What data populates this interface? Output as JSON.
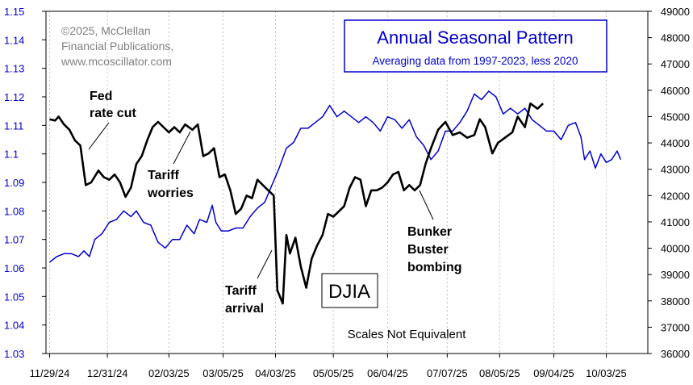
{
  "chart_data": {
    "type": "line",
    "title": "Annual Seasonal Pattern",
    "subtitle": "Averaging data from 1997-2023, less 2020",
    "copyright_lines": [
      "©2025, McClellan",
      "Financial Publications,",
      "www.mcoscillator.com"
    ],
    "series_label": "DJIA",
    "scale_note": "Scales Not Equivalent",
    "left_axis": {
      "ylim": [
        1.03,
        1.15
      ],
      "ticks": [
        "1.03",
        "1.04",
        "1.05",
        "1.06",
        "1.07",
        "1.08",
        "1.09",
        "1.1",
        "1.11",
        "1.12",
        "1.13",
        "1.14",
        "1.15"
      ]
    },
    "right_axis": {
      "ylim": [
        36000,
        49000
      ],
      "ticks": [
        "36000",
        "37000",
        "38000",
        "39000",
        "40000",
        "41000",
        "42000",
        "43000",
        "44000",
        "45000",
        "46000",
        "47000",
        "48000",
        "49000"
      ]
    },
    "x_tick_labels": [
      "11/29/24",
      "12/31/24",
      "02/03/25",
      "03/05/25",
      "04/03/25",
      "05/05/25",
      "06/04/25",
      "07/07/25",
      "08/05/25",
      "09/04/25",
      "10/03/25"
    ],
    "x_tick_dates": [
      "2024-11-29",
      "2024-12-31",
      "2025-02-03",
      "2025-03-05",
      "2025-04-03",
      "2025-05-05",
      "2025-06-04",
      "2025-07-07",
      "2025-08-05",
      "2025-09-04",
      "2025-10-03"
    ],
    "xlim": [
      "2024-11-27",
      "2025-10-26"
    ],
    "colors": {
      "seasonal": "#0000cc",
      "djia": "#000000",
      "axis_text": "#0000cc",
      "frame": "#000000"
    },
    "series": [
      {
        "name": "Annual Seasonal Pattern",
        "axis": "left",
        "points": [
          [
            "2024-11-29",
            1.062
          ],
          [
            "2024-12-03",
            1.064
          ],
          [
            "2024-12-07",
            1.065
          ],
          [
            "2024-12-11",
            1.065
          ],
          [
            "2024-12-15",
            1.064
          ],
          [
            "2024-12-18",
            1.066
          ],
          [
            "2024-12-21",
            1.064
          ],
          [
            "2024-12-24",
            1.07
          ],
          [
            "2024-12-28",
            1.072
          ],
          [
            "2025-01-01",
            1.076
          ],
          [
            "2025-01-05",
            1.077
          ],
          [
            "2025-01-09",
            1.08
          ],
          [
            "2025-01-13",
            1.078
          ],
          [
            "2025-01-16",
            1.08
          ],
          [
            "2025-01-20",
            1.076
          ],
          [
            "2025-01-24",
            1.075
          ],
          [
            "2025-01-28",
            1.069
          ],
          [
            "2025-02-01",
            1.067
          ],
          [
            "2025-02-05",
            1.07
          ],
          [
            "2025-02-09",
            1.07
          ],
          [
            "2025-02-13",
            1.075
          ],
          [
            "2025-02-17",
            1.072
          ],
          [
            "2025-02-20",
            1.077
          ],
          [
            "2025-02-24",
            1.076
          ],
          [
            "2025-02-27",
            1.082
          ],
          [
            "2025-03-01",
            1.076
          ],
          [
            "2025-03-04",
            1.073
          ],
          [
            "2025-03-08",
            1.073
          ],
          [
            "2025-03-12",
            1.074
          ],
          [
            "2025-03-16",
            1.074
          ],
          [
            "2025-03-20",
            1.078
          ],
          [
            "2025-03-24",
            1.081
          ],
          [
            "2025-03-28",
            1.083
          ],
          [
            "2025-04-01",
            1.089
          ],
          [
            "2025-04-05",
            1.095
          ],
          [
            "2025-04-09",
            1.102
          ],
          [
            "2025-04-13",
            1.104
          ],
          [
            "2025-04-17",
            1.109
          ],
          [
            "2025-04-21",
            1.109
          ],
          [
            "2025-04-25",
            1.111
          ],
          [
            "2025-04-29",
            1.113
          ],
          [
            "2025-05-03",
            1.117
          ],
          [
            "2025-05-07",
            1.113
          ],
          [
            "2025-05-11",
            1.115
          ],
          [
            "2025-05-15",
            1.113
          ],
          [
            "2025-05-19",
            1.111
          ],
          [
            "2025-05-23",
            1.113
          ],
          [
            "2025-05-27",
            1.111
          ],
          [
            "2025-05-31",
            1.108
          ],
          [
            "2025-06-04",
            1.113
          ],
          [
            "2025-06-08",
            1.112
          ],
          [
            "2025-06-12",
            1.109
          ],
          [
            "2025-06-16",
            1.112
          ],
          [
            "2025-06-20",
            1.106
          ],
          [
            "2025-06-24",
            1.103
          ],
          [
            "2025-06-28",
            1.098
          ],
          [
            "2025-07-02",
            1.101
          ],
          [
            "2025-07-06",
            1.108
          ],
          [
            "2025-07-10",
            1.108
          ],
          [
            "2025-07-14",
            1.111
          ],
          [
            "2025-07-18",
            1.115
          ],
          [
            "2025-07-22",
            1.121
          ],
          [
            "2025-07-26",
            1.119
          ],
          [
            "2025-07-30",
            1.122
          ],
          [
            "2025-08-03",
            1.12
          ],
          [
            "2025-08-07",
            1.114
          ],
          [
            "2025-08-11",
            1.116
          ],
          [
            "2025-08-15",
            1.114
          ],
          [
            "2025-08-19",
            1.116
          ],
          [
            "2025-08-23",
            1.112
          ],
          [
            "2025-08-27",
            1.11
          ],
          [
            "2025-08-31",
            1.108
          ],
          [
            "2025-09-04",
            1.108
          ],
          [
            "2025-09-08",
            1.105
          ],
          [
            "2025-09-12",
            1.11
          ],
          [
            "2025-09-16",
            1.111
          ],
          [
            "2025-09-19",
            1.106
          ],
          [
            "2025-09-21",
            1.098
          ],
          [
            "2025-09-24",
            1.101
          ],
          [
            "2025-09-27",
            1.095
          ],
          [
            "2025-09-30",
            1.1
          ],
          [
            "2025-10-03",
            1.097
          ],
          [
            "2025-10-06",
            1.098
          ],
          [
            "2025-10-09",
            1.101
          ],
          [
            "2025-10-11",
            1.098
          ]
        ]
      },
      {
        "name": "DJIA",
        "axis": "right",
        "points": [
          [
            "2024-11-29",
            44900
          ],
          [
            "2024-12-02",
            44850
          ],
          [
            "2024-12-04",
            45000
          ],
          [
            "2024-12-07",
            44700
          ],
          [
            "2024-12-10",
            44500
          ],
          [
            "2024-12-13",
            44100
          ],
          [
            "2024-12-16",
            43900
          ],
          [
            "2024-12-19",
            42400
          ],
          [
            "2024-12-22",
            42500
          ],
          [
            "2024-12-26",
            42950
          ],
          [
            "2024-12-29",
            42700
          ],
          [
            "2025-01-01",
            42600
          ],
          [
            "2025-01-04",
            42800
          ],
          [
            "2025-01-07",
            42500
          ],
          [
            "2025-01-10",
            41950
          ],
          [
            "2025-01-13",
            42300
          ],
          [
            "2025-01-16",
            43200
          ],
          [
            "2025-01-19",
            43500
          ],
          [
            "2025-01-22",
            44100
          ],
          [
            "2025-01-25",
            44600
          ],
          [
            "2025-01-28",
            44800
          ],
          [
            "2025-01-31",
            44600
          ],
          [
            "2025-02-03",
            44400
          ],
          [
            "2025-02-06",
            44600
          ],
          [
            "2025-02-09",
            44400
          ],
          [
            "2025-02-12",
            44700
          ],
          [
            "2025-02-16",
            44500
          ],
          [
            "2025-02-19",
            44700
          ],
          [
            "2025-02-22",
            43500
          ],
          [
            "2025-02-25",
            43600
          ],
          [
            "2025-02-28",
            43800
          ],
          [
            "2025-03-03",
            42700
          ],
          [
            "2025-03-06",
            42800
          ],
          [
            "2025-03-09",
            42200
          ],
          [
            "2025-03-12",
            41300
          ],
          [
            "2025-03-15",
            41500
          ],
          [
            "2025-03-18",
            42000
          ],
          [
            "2025-03-21",
            41900
          ],
          [
            "2025-03-24",
            42600
          ],
          [
            "2025-03-27",
            42400
          ],
          [
            "2025-03-30",
            42200
          ],
          [
            "2025-04-02",
            42000
          ],
          [
            "2025-04-04",
            38400
          ],
          [
            "2025-04-07",
            37900
          ],
          [
            "2025-04-09",
            40500
          ],
          [
            "2025-04-11",
            39800
          ],
          [
            "2025-04-14",
            40400
          ],
          [
            "2025-04-17",
            39300
          ],
          [
            "2025-04-20",
            38500
          ],
          [
            "2025-04-23",
            39600
          ],
          [
            "2025-04-26",
            40100
          ],
          [
            "2025-04-29",
            40500
          ],
          [
            "2025-05-02",
            41300
          ],
          [
            "2025-05-05",
            41200
          ],
          [
            "2025-05-08",
            41400
          ],
          [
            "2025-05-11",
            41600
          ],
          [
            "2025-05-14",
            42300
          ],
          [
            "2025-05-17",
            42700
          ],
          [
            "2025-05-20",
            42600
          ],
          [
            "2025-05-23",
            41600
          ],
          [
            "2025-05-26",
            42200
          ],
          [
            "2025-05-29",
            42200
          ],
          [
            "2025-06-01",
            42300
          ],
          [
            "2025-06-04",
            42500
          ],
          [
            "2025-06-07",
            42800
          ],
          [
            "2025-06-10",
            42900
          ],
          [
            "2025-06-13",
            42200
          ],
          [
            "2025-06-16",
            42400
          ],
          [
            "2025-06-19",
            42200
          ],
          [
            "2025-06-22",
            42400
          ],
          [
            "2025-06-25",
            43200
          ],
          [
            "2025-06-28",
            43800
          ],
          [
            "2025-07-02",
            44500
          ],
          [
            "2025-07-06",
            44800
          ],
          [
            "2025-07-10",
            44300
          ],
          [
            "2025-07-14",
            44400
          ],
          [
            "2025-07-18",
            44200
          ],
          [
            "2025-07-22",
            44300
          ],
          [
            "2025-07-25",
            44900
          ],
          [
            "2025-07-28",
            44600
          ],
          [
            "2025-08-01",
            43600
          ],
          [
            "2025-08-04",
            44000
          ],
          [
            "2025-08-08",
            44200
          ],
          [
            "2025-08-12",
            44400
          ],
          [
            "2025-08-15",
            45000
          ],
          [
            "2025-08-19",
            44600
          ],
          [
            "2025-08-22",
            45500
          ],
          [
            "2025-08-26",
            45300
          ],
          [
            "2025-08-29",
            45500
          ]
        ]
      }
    ],
    "annotations": [
      {
        "lines": [
          "Fed",
          "rate cut"
        ],
        "weight": "bold",
        "date": "2024-12-19",
        "value": 1.12,
        "axis": "left"
      },
      {
        "lines": [
          "Tariff",
          "worries"
        ],
        "weight": "bold",
        "date": "2025-02-09",
        "value": 1.093,
        "axis": "left"
      },
      {
        "lines": [
          "Tariff",
          "arrival"
        ],
        "weight": "bold",
        "date": "2025-03-28",
        "value": 1.053,
        "axis": "left"
      },
      {
        "lines": [
          "Bunker",
          "Buster",
          "bombing"
        ],
        "weight": "bold",
        "date": "2025-07-15",
        "value": 1.074,
        "axis": "left"
      }
    ]
  }
}
